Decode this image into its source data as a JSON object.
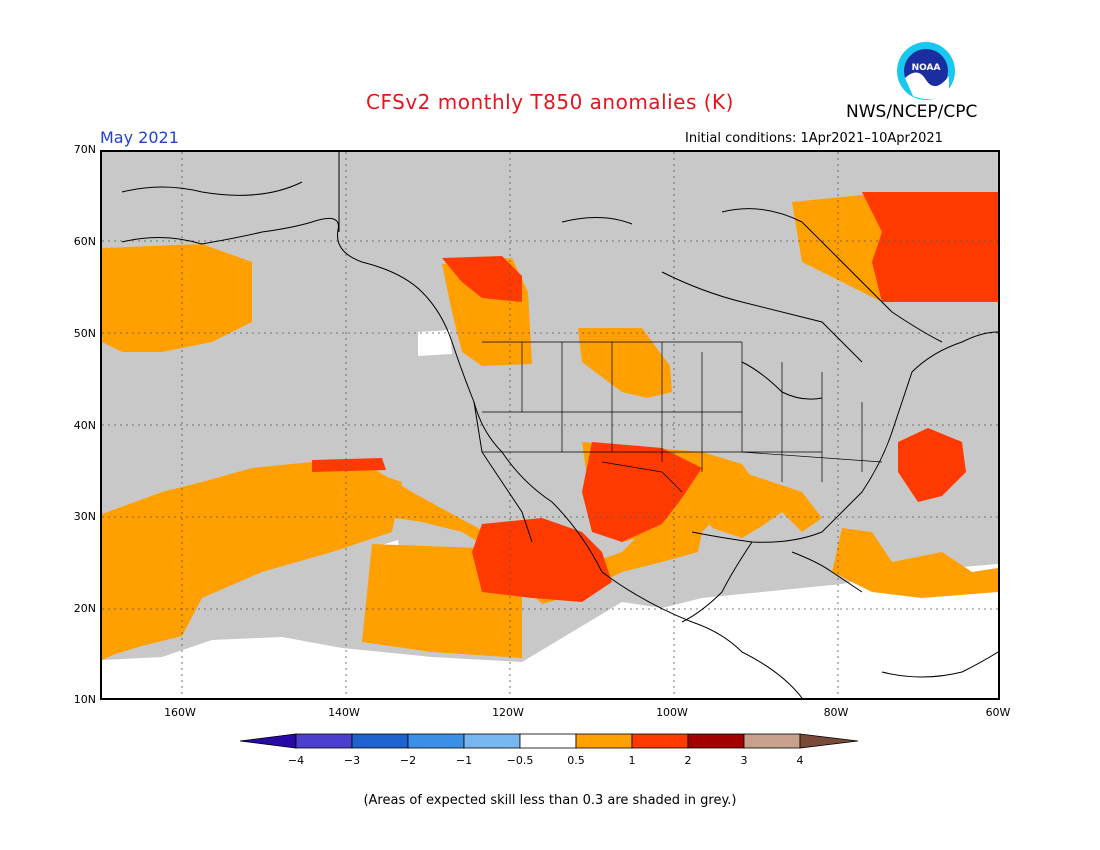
{
  "title": "CFSv2 monthly T850 anomalies (K)",
  "agency": "NWS/NCEP/CPC",
  "logo_text": "NOAA",
  "valid_month": "May 2021",
  "initial_conditions": "Initial conditions: 1Apr2021–10Apr2021",
  "lat_labels": [
    "70N",
    "60N",
    "50N",
    "40N",
    "30N",
    "20N",
    "10N"
  ],
  "lon_labels": [
    "160W",
    "140W",
    "120W",
    "100W",
    "80W",
    "60W"
  ],
  "colorbar": {
    "labels": [
      "−4",
      "−3",
      "−2",
      "−1",
      "−0.5",
      "0.5",
      "1",
      "2",
      "3",
      "4"
    ],
    "colors": [
      "#2a0aa6",
      "#4a3fcf",
      "#1e62d0",
      "#3b8fe6",
      "#78b6f0",
      "#ffffff",
      "#ffa000",
      "#ff3a00",
      "#a50000",
      "#c8a08c",
      "#7a4a38"
    ]
  },
  "note": "(Areas of expected skill less than 0.3 are shaded in grey.)",
  "map_colors": {
    "no_skill": "#c8c8c8",
    "anomaly_0_5_to_1": "#ffa000",
    "anomaly_1_to_2": "#ff3a00",
    "near_normal": "#ffffff",
    "coastline": "#000000"
  }
}
